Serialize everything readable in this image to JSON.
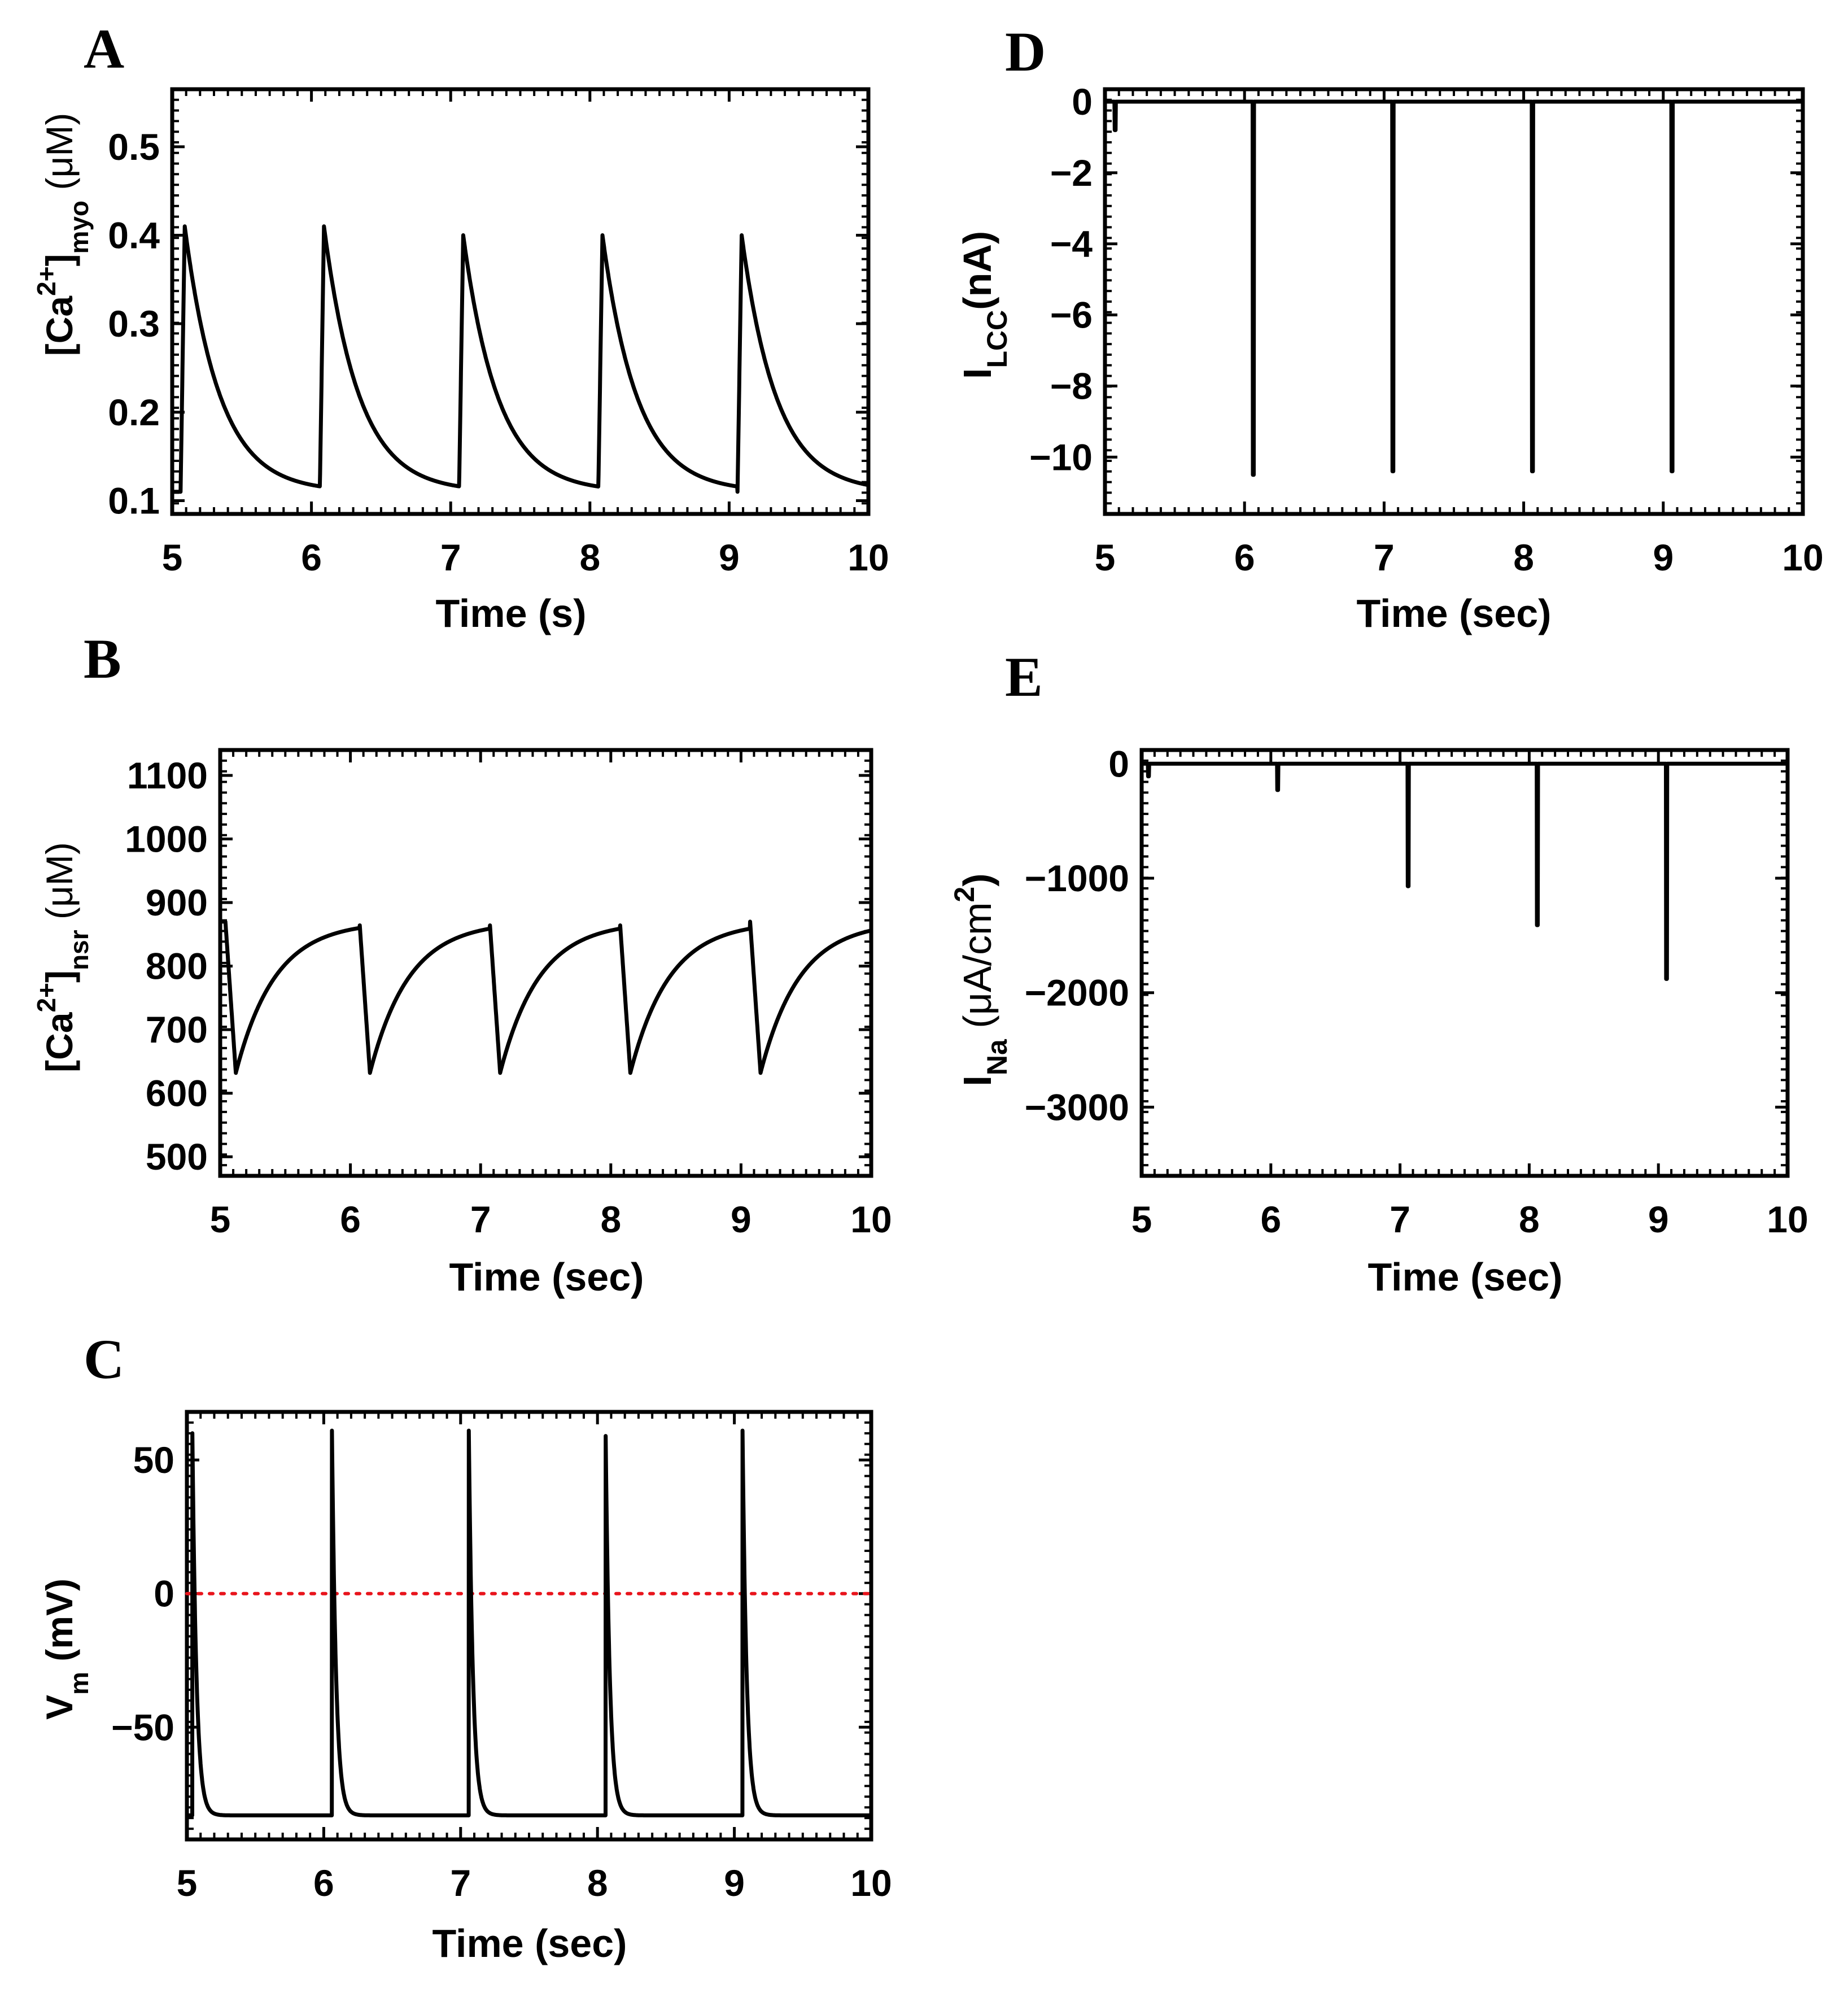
{
  "figure": {
    "colors": {
      "trace": "#000000",
      "axis": "#000000",
      "zero_line": "#e8141c",
      "background": "#ffffff"
    }
  },
  "chart_data": [
    {
      "id": "A",
      "panel_label": "A",
      "type": "line",
      "title": "",
      "xlabel": "Time (s)",
      "ylabel": {
        "pre": "[Ca",
        "sup": "2+",
        "mid": "]",
        "sub": "myo",
        "post": " (μM)"
      },
      "xlim": [
        5,
        10
      ],
      "ylim": [
        0.085,
        0.565
      ],
      "x_ticks": [
        5,
        6,
        7,
        8,
        9,
        10
      ],
      "x_tick_labels": [
        "5",
        "6",
        "7",
        "8",
        "9",
        "10"
      ],
      "y_ticks": [
        0.1,
        0.2,
        0.3,
        0.4,
        0.5
      ],
      "y_tick_labels": [
        "0.1",
        "0.2",
        "0.3",
        "0.4",
        "0.5"
      ],
      "shape": "calcium_transient",
      "series": [
        {
          "name": "[Ca2+]myo",
          "baseline": 0.11,
          "beats": [
            {
              "t": 5.06,
              "peak": 0.41
            },
            {
              "t": 6.06,
              "peak": 0.41
            },
            {
              "t": 7.06,
              "peak": 0.4
            },
            {
              "t": 8.06,
              "peak": 0.4
            },
            {
              "t": 9.06,
              "peak": 0.4
            }
          ],
          "decay_tau_s": 0.25
        }
      ]
    },
    {
      "id": "B",
      "panel_label": "B",
      "type": "line",
      "title": "",
      "xlabel": "Time (sec)",
      "ylabel": {
        "pre": "[Ca",
        "sup": "2+",
        "mid": "]",
        "sub": "nsr",
        "post": " (μM)"
      },
      "xlim": [
        5,
        10
      ],
      "ylim": [
        470,
        1140
      ],
      "x_ticks": [
        5,
        6,
        7,
        8,
        9,
        10
      ],
      "x_tick_labels": [
        "5",
        "6",
        "7",
        "8",
        "9",
        "10"
      ],
      "y_ticks": [
        500,
        600,
        700,
        800,
        900,
        1000,
        1100
      ],
      "y_tick_labels": [
        "500",
        "600",
        "700",
        "800",
        "900",
        "1000",
        "1100"
      ],
      "shape": "sr_refill",
      "series": [
        {
          "name": "[Ca2+]nsr",
          "peak": 870,
          "trough": 632,
          "beats": [
            {
              "t": 5.04
            },
            {
              "t": 6.07
            },
            {
              "t": 7.07
            },
            {
              "t": 8.07
            },
            {
              "t": 9.07
            }
          ],
          "drop_duration_s": 0.08,
          "refill_tau_s": 0.3
        }
      ]
    },
    {
      "id": "C",
      "panel_label": "C",
      "type": "line",
      "title": "",
      "xlabel": "Time (sec)",
      "ylabel": {
        "pre": "V",
        "sub": "m",
        "post": " (mV)"
      },
      "xlim": [
        5,
        10
      ],
      "ylim": [
        -92,
        68
      ],
      "x_ticks": [
        5,
        6,
        7,
        8,
        9,
        10
      ],
      "x_tick_labels": [
        "5",
        "6",
        "7",
        "8",
        "9",
        "10"
      ],
      "y_ticks": [
        -50,
        0,
        50
      ],
      "y_tick_labels": [
        "−50",
        "0",
        "50"
      ],
      "shape": "action_potential",
      "reference_line": {
        "y": 0,
        "style": "dotted",
        "color": "#e8141c"
      },
      "series": [
        {
          "name": "Vm",
          "rest": -83,
          "beats": [
            {
              "t": 5.04,
              "peak": 60
            },
            {
              "t": 6.06,
              "peak": 61
            },
            {
              "t": 7.06,
              "peak": 61
            },
            {
              "t": 8.06,
              "peak": 59
            },
            {
              "t": 9.06,
              "peak": 61
            }
          ],
          "repol_tau_s": 0.03
        }
      ]
    },
    {
      "id": "D",
      "panel_label": "D",
      "type": "line",
      "title": "",
      "xlabel": "Time (sec)",
      "ylabel": {
        "pre": "I",
        "sub": "LCC",
        "post": "(nA)"
      },
      "xlim": [
        5,
        10
      ],
      "ylim": [
        -11.6,
        0.35
      ],
      "x_ticks": [
        5,
        6,
        7,
        8,
        9,
        10
      ],
      "x_tick_labels": [
        "5",
        "6",
        "7",
        "8",
        "9",
        "10"
      ],
      "y_ticks": [
        -10,
        -8,
        -6,
        -4,
        -2,
        0
      ],
      "y_tick_labels": [
        "−10",
        "−8",
        "−6",
        "−4",
        "−2",
        "0"
      ],
      "shape": "spikes",
      "series": [
        {
          "name": "ILCC",
          "spikes": [
            {
              "t": 5.07,
              "value": -0.8
            },
            {
              "t": 6.06,
              "value": -10.5
            },
            {
              "t": 7.06,
              "value": -10.4
            },
            {
              "t": 8.06,
              "value": -10.4
            },
            {
              "t": 9.06,
              "value": -10.4
            }
          ]
        }
      ]
    },
    {
      "id": "E",
      "panel_label": "E",
      "type": "line",
      "title": "",
      "xlabel": "Time (sec)",
      "ylabel": {
        "pre": "I",
        "sub": "Na",
        "post": " (μA/cm",
        "sup": "2",
        "tail": ")"
      },
      "xlim": [
        5,
        10
      ],
      "ylim": [
        -3600,
        120
      ],
      "x_ticks": [
        5,
        6,
        7,
        8,
        9,
        10
      ],
      "x_tick_labels": [
        "5",
        "6",
        "7",
        "8",
        "9",
        "10"
      ],
      "y_ticks": [
        -3000,
        -2000,
        -1000,
        0
      ],
      "y_tick_labels": [
        "−3000",
        "−2000",
        "−1000",
        "0"
      ],
      "shape": "spikes",
      "series": [
        {
          "name": "INa",
          "spikes": [
            {
              "t": 5.05,
              "value": -110
            },
            {
              "t": 6.05,
              "value": -230
            },
            {
              "t": 7.06,
              "value": -1070
            },
            {
              "t": 8.06,
              "value": -1410
            },
            {
              "t": 9.06,
              "value": -1880
            }
          ]
        }
      ]
    }
  ]
}
